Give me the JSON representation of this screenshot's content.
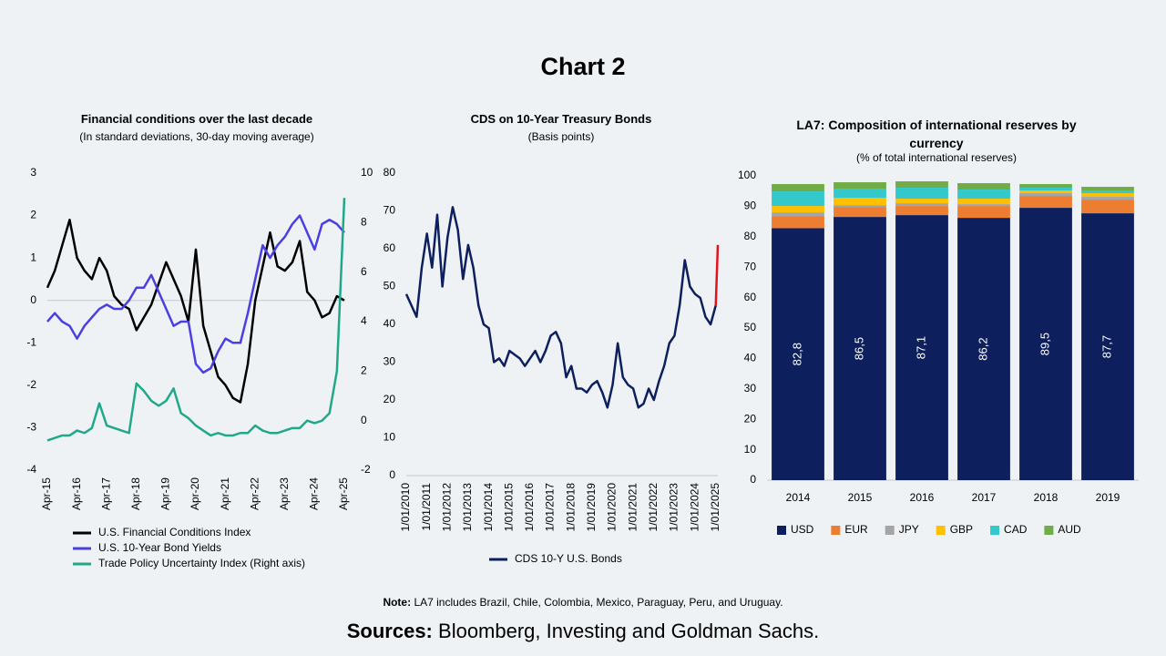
{
  "title": "Chart 2",
  "note": {
    "label": "Note:",
    "text": "LA7 includes Brazil, Chile, Colombia, Mexico, Paraguay, Peru, and Uruguay."
  },
  "sources": {
    "label": "Sources:",
    "text": "Bloomberg, Investing and Goldman Sachs."
  },
  "chart_data": [
    {
      "type": "line",
      "title": "Financial conditions over the last decade",
      "subtitle": "(In standard deviations, 30-day moving average)",
      "legend": "bottom",
      "x": [
        2015.25,
        2015.5,
        2015.75,
        2016,
        2016.25,
        2016.5,
        2016.75,
        2017,
        2017.25,
        2017.5,
        2017.75,
        2018,
        2018.25,
        2018.5,
        2018.75,
        2019,
        2019.25,
        2019.5,
        2019.75,
        2020,
        2020.25,
        2020.5,
        2020.75,
        2021,
        2021.25,
        2021.5,
        2021.75,
        2022,
        2022.25,
        2022.5,
        2022.75,
        2023,
        2023.25,
        2023.5,
        2023.75,
        2024,
        2024.25,
        2024.5,
        2024.75,
        2025,
        2025.25
      ],
      "xlim": [
        2015.25,
        2025.25
      ],
      "xticks": [
        {
          "value": 2015.25,
          "label": "Apr-15"
        },
        {
          "value": 2016.25,
          "label": "Apr-16"
        },
        {
          "value": 2017.25,
          "label": "Apr-17"
        },
        {
          "value": 2018.25,
          "label": "Apr-18"
        },
        {
          "value": 2019.25,
          "label": "Apr-19"
        },
        {
          "value": 2020.25,
          "label": "Apr-20"
        },
        {
          "value": 2021.25,
          "label": "Apr-21"
        },
        {
          "value": 2022.25,
          "label": "Apr-22"
        },
        {
          "value": 2023.25,
          "label": "Apr-23"
        },
        {
          "value": 2024.25,
          "label": "Apr-24"
        },
        {
          "value": 2025.25,
          "label": "Apr-25"
        }
      ],
      "ylim": [
        -4,
        3
      ],
      "yticks": [
        -4,
        -3,
        -2,
        -1,
        0,
        1,
        2,
        3
      ],
      "y2lim": [
        -2,
        10
      ],
      "y2ticks": [
        -2,
        0,
        2,
        4,
        6,
        8,
        10
      ],
      "series": [
        {
          "name": "U.S. Financial Conditions Index",
          "color": "#000000",
          "values": [
            0.3,
            0.7,
            1.3,
            1.9,
            1.0,
            0.7,
            0.5,
            1.0,
            0.7,
            0.1,
            -0.1,
            -0.2,
            -0.7,
            -0.4,
            -0.1,
            0.4,
            0.9,
            0.5,
            0.1,
            -0.5,
            1.2,
            -0.6,
            -1.2,
            -1.8,
            -2.0,
            -2.3,
            -2.4,
            -1.5,
            0,
            0.8,
            1.6,
            0.8,
            0.7,
            0.9,
            1.4,
            0.2,
            0,
            -0.4,
            -0.3,
            0.1,
            0
          ]
        },
        {
          "name": "U.S. 10-Year Bond Yields",
          "color": "#4a3fe0",
          "values": [
            -0.5,
            -0.3,
            -0.5,
            -0.6,
            -0.9,
            -0.6,
            -0.4,
            -0.2,
            -0.1,
            -0.2,
            -0.2,
            0,
            0.3,
            0.3,
            0.6,
            0.2,
            -0.2,
            -0.6,
            -0.5,
            -0.5,
            -1.5,
            -1.7,
            -1.6,
            -1.2,
            -0.9,
            -1.0,
            -1.0,
            -0.3,
            0.5,
            1.3,
            1.0,
            1.3,
            1.5,
            1.8,
            2.0,
            1.6,
            1.2,
            1.8,
            1.9,
            1.8,
            1.6
          ]
        },
        {
          "name": "Trade Policy Uncertainty Index (Right axis)",
          "color": "#1fa88a",
          "axis": "y2",
          "values": [
            -0.8,
            -0.7,
            -0.6,
            -0.6,
            -0.4,
            -0.5,
            -0.3,
            0.7,
            -0.2,
            -0.3,
            -0.4,
            -0.5,
            1.5,
            1.2,
            0.8,
            0.6,
            0.8,
            1.3,
            0.3,
            0.1,
            -0.2,
            -0.4,
            -0.6,
            -0.5,
            -0.6,
            -0.6,
            -0.5,
            -0.5,
            -0.2,
            -0.4,
            -0.5,
            -0.5,
            -0.4,
            -0.3,
            -0.3,
            0,
            -0.1,
            0,
            0.3,
            2.0,
            9.0
          ]
        }
      ]
    },
    {
      "type": "line",
      "title": "CDS on 10-Year Treasury Bonds",
      "subtitle": "(Basis points)",
      "legend": "bottom",
      "x": [
        2010,
        2010.25,
        2010.5,
        2010.75,
        2011,
        2011.25,
        2011.5,
        2011.75,
        2012,
        2012.25,
        2012.5,
        2012.75,
        2013,
        2013.25,
        2013.5,
        2013.75,
        2014,
        2014.25,
        2014.5,
        2014.75,
        2015,
        2015.25,
        2015.5,
        2015.75,
        2016,
        2016.25,
        2016.5,
        2016.75,
        2017,
        2017.25,
        2017.5,
        2017.75,
        2018,
        2018.25,
        2018.5,
        2018.75,
        2019,
        2019.25,
        2019.5,
        2019.75,
        2020,
        2020.25,
        2020.5,
        2020.75,
        2021,
        2021.25,
        2021.5,
        2021.75,
        2022,
        2022.25,
        2022.5,
        2022.75,
        2023,
        2023.25,
        2023.5,
        2023.75,
        2024,
        2024.25,
        2024.5,
        2024.75,
        2025,
        2025.1
      ],
      "xlim": [
        2010,
        2025.1
      ],
      "xticks": [
        {
          "value": 2010,
          "label": "1/01/2010"
        },
        {
          "value": 2011,
          "label": "1/01/2011"
        },
        {
          "value": 2012,
          "label": "1/01/2012"
        },
        {
          "value": 2013,
          "label": "1/01/2013"
        },
        {
          "value": 2014,
          "label": "1/01/2014"
        },
        {
          "value": 2015,
          "label": "1/01/2015"
        },
        {
          "value": 2016,
          "label": "1/01/2016"
        },
        {
          "value": 2017,
          "label": "1/01/2017"
        },
        {
          "value": 2018,
          "label": "1/01/2018"
        },
        {
          "value": 2019,
          "label": "1/01/2019"
        },
        {
          "value": 2020,
          "label": "1/01/2020"
        },
        {
          "value": 2021,
          "label": "1/01/2021"
        },
        {
          "value": 2022,
          "label": "1/01/2022"
        },
        {
          "value": 2023,
          "label": "1/01/2023"
        },
        {
          "value": 2024,
          "label": "1/01/2024"
        },
        {
          "value": 2025,
          "label": "1/01/2025"
        }
      ],
      "ylim": [
        0,
        80
      ],
      "yticks": [
        0,
        10,
        20,
        30,
        40,
        50,
        60,
        70,
        80
      ],
      "last_segment_color": "#e3121b",
      "series": [
        {
          "name": "CDS 10-Y U.S. Bonds",
          "color": "#0d1f5c",
          "values": [
            48,
            45,
            42,
            55,
            64,
            55,
            69,
            50,
            63,
            71,
            65,
            52,
            61,
            55,
            45,
            40,
            39,
            30,
            31,
            29,
            33,
            32,
            31,
            29,
            31,
            33,
            30,
            33,
            37,
            38,
            35,
            26,
            29,
            23,
            23,
            22,
            24,
            25,
            22,
            18,
            24,
            35,
            26,
            24,
            23,
            18,
            19,
            23,
            20,
            25,
            29,
            35,
            37,
            45,
            57,
            50,
            48,
            47,
            42,
            40,
            45,
            61
          ]
        }
      ]
    },
    {
      "type": "bar",
      "stacked": true,
      "title": "LA7: Composition of international reserves by currency",
      "subtitle": "(% of total international reserves)",
      "legend": "bottom",
      "categories": [
        "2014",
        "2015",
        "2016",
        "2017",
        "2018",
        "2019"
      ],
      "ylim": [
        0,
        100
      ],
      "yticks": [
        0,
        10,
        20,
        30,
        40,
        50,
        60,
        70,
        80,
        90,
        100
      ],
      "series": [
        {
          "name": "USD",
          "color": "#0d1f5c",
          "values": [
            82.8,
            86.5,
            87.1,
            86.2,
            89.5,
            87.7
          ],
          "value_labels": [
            "82,8",
            "86,5",
            "87,1",
            "86,2",
            "89,5",
            "87,7"
          ]
        },
        {
          "name": "EUR",
          "color": "#ed7d31",
          "values": [
            4.0,
            3.3,
            3.0,
            3.9,
            3.9,
            4.5
          ]
        },
        {
          "name": "JPY",
          "color": "#a5a5a5",
          "values": [
            1.2,
            0.6,
            0.9,
            0.6,
            0.9,
            0.9
          ]
        },
        {
          "name": "GBP",
          "color": "#ffc000",
          "values": [
            2.1,
            2.4,
            1.5,
            1.8,
            0.9,
            1.2
          ]
        },
        {
          "name": "CAD",
          "color": "#33c9cc",
          "values": [
            4.8,
            3.0,
            3.6,
            3.0,
            0.9,
            0.9
          ]
        },
        {
          "name": "AUD",
          "color": "#70ad47",
          "values": [
            2.4,
            2.1,
            2.1,
            2.1,
            1.2,
            1.2
          ]
        }
      ]
    }
  ]
}
